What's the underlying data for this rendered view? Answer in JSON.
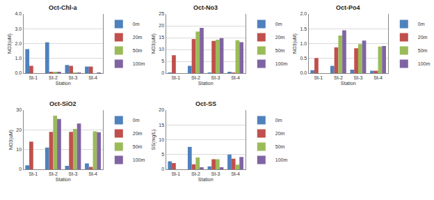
{
  "chart_data": [
    {
      "type": "bar",
      "title": "Oct-Chl-a",
      "x_label": "Station",
      "y_label": "NO3(uM)",
      "categories": [
        "St-1",
        "St-2",
        "St-3",
        "St-4"
      ],
      "series": [
        {
          "name": "0m",
          "color": "#4f81bd",
          "values": [
            1.62,
            2.08,
            0.55,
            0.45
          ]
        },
        {
          "name": "20m",
          "color": "#c0504d",
          "values": [
            0.5,
            0.07,
            0.5,
            0.45
          ]
        },
        {
          "name": "50m",
          "color": "#9bbb59",
          "values": [
            null,
            0.07,
            0.02,
            0.0
          ]
        },
        {
          "name": "100m",
          "color": "#8064a2",
          "values": [
            null,
            0.07,
            0.01,
            0.03
          ]
        }
      ],
      "ylim": [
        0,
        4
      ],
      "yticks": [
        {
          "value": 0,
          "label": "0.0"
        },
        {
          "value": 1,
          "label": "1.0"
        },
        {
          "value": 2,
          "label": "2.0"
        },
        {
          "value": 3,
          "label": "3.0"
        },
        {
          "value": 4,
          "label": "4.0"
        }
      ],
      "grid": true,
      "legend": "right"
    },
    {
      "type": "bar",
      "title": "Oct-No3",
      "x_label": "Station",
      "y_label": "NO3(uM)",
      "categories": [
        "St-1",
        "St-2",
        "St-3",
        "St-4"
      ],
      "series": [
        {
          "name": "0m",
          "color": "#4f81bd",
          "values": [
            0.1,
            3.1,
            0.2,
            0.3
          ]
        },
        {
          "name": "20m",
          "color": "#c0504d",
          "values": [
            7.6,
            14.4,
            13.6,
            0.1
          ]
        },
        {
          "name": "50m",
          "color": "#9bbb59",
          "values": [
            null,
            17.6,
            14.1,
            13.9
          ]
        },
        {
          "name": "100m",
          "color": "#8064a2",
          "values": [
            null,
            19.1,
            14.8,
            13.1
          ]
        }
      ],
      "ylim": [
        0,
        25
      ],
      "yticks": [
        0,
        5,
        10,
        15,
        20,
        25
      ],
      "grid": true,
      "legend": "right"
    },
    {
      "type": "bar",
      "title": "Oct-Po4",
      "x_label": "Station",
      "y_label": "NO3(uM)",
      "categories": [
        "St-1",
        "St-2",
        "St-3",
        "St-4"
      ],
      "series": [
        {
          "name": "0m",
          "color": "#4f81bd",
          "values": [
            0.1,
            0.25,
            0.12,
            0.08
          ]
        },
        {
          "name": "20m",
          "color": "#c0504d",
          "values": [
            0.51,
            0.87,
            0.84,
            0.08
          ]
        },
        {
          "name": "50m",
          "color": "#9bbb59",
          "values": [
            null,
            1.27,
            0.98,
            0.9
          ]
        },
        {
          "name": "100m",
          "color": "#8064a2",
          "values": [
            null,
            1.45,
            1.1,
            0.92
          ]
        }
      ],
      "ylim": [
        0,
        2
      ],
      "yticks": [
        {
          "value": 0,
          "label": "0.0"
        },
        {
          "value": 0.5,
          "label": "0.5"
        },
        {
          "value": 1,
          "label": "1.0"
        },
        {
          "value": 1.5,
          "label": "1.5"
        },
        {
          "value": 2,
          "label": "2.0"
        }
      ],
      "grid": true,
      "legend": "right"
    },
    {
      "type": "bar",
      "title": "Oct-SiO2",
      "x_label": "Station",
      "y_label": "NO3(uM)",
      "categories": [
        "St-1",
        "St-2",
        "St-3",
        "St-4"
      ],
      "series": [
        {
          "name": "0m",
          "color": "#4f81bd",
          "values": [
            2.0,
            11.0,
            1.8,
            3.0
          ]
        },
        {
          "name": "20m",
          "color": "#c0504d",
          "values": [
            14.0,
            19.0,
            19.0,
            1.2
          ]
        },
        {
          "name": "50m",
          "color": "#9bbb59",
          "values": [
            null,
            27.2,
            20.5,
            19.2
          ]
        },
        {
          "name": "100m",
          "color": "#8064a2",
          "values": [
            null,
            25.5,
            23.2,
            18.8
          ]
        }
      ],
      "ylim": [
        0,
        30
      ],
      "yticks": [
        0,
        10,
        20,
        30
      ],
      "grid": true,
      "legend": "right"
    },
    {
      "type": "bar",
      "title": "Oct-SS",
      "x_label": "Station",
      "y_label": "SS(mg/L)",
      "categories": [
        "St-1",
        "St-2",
        "St-3",
        "St-4"
      ],
      "series": [
        {
          "name": "0m",
          "color": "#4f81bd",
          "values": [
            2.7,
            7.6,
            1.0,
            5.0
          ]
        },
        {
          "name": "20m",
          "color": "#c0504d",
          "values": [
            2.1,
            1.7,
            3.4,
            3.6
          ]
        },
        {
          "name": "50m",
          "color": "#9bbb59",
          "values": [
            null,
            4.0,
            3.4,
            1.6
          ]
        },
        {
          "name": "100m",
          "color": "#8064a2",
          "values": [
            null,
            0.7,
            0.7,
            4.2
          ]
        }
      ],
      "ylim": [
        0,
        20
      ],
      "yticks": [
        0,
        5,
        10,
        15,
        20
      ],
      "grid": true,
      "legend": "right"
    }
  ]
}
